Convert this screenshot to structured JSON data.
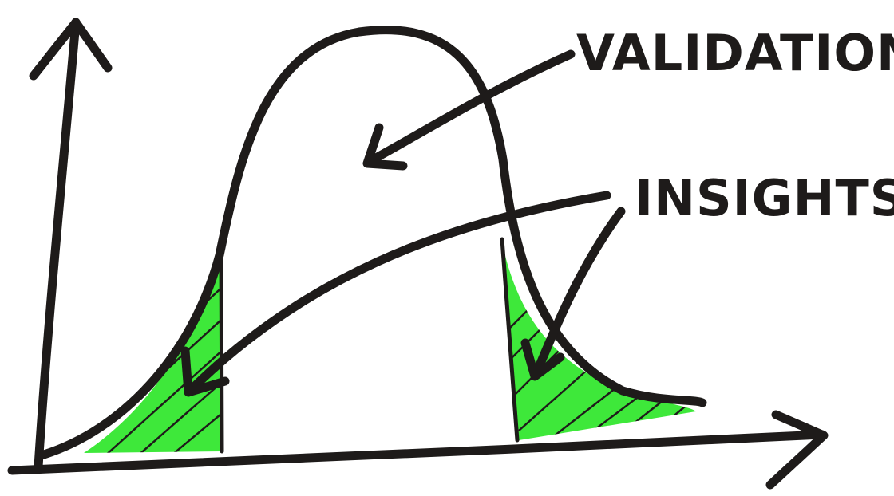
{
  "labels": {
    "validation": "VALIDATION",
    "insights": "INSIGHTS"
  }
}
